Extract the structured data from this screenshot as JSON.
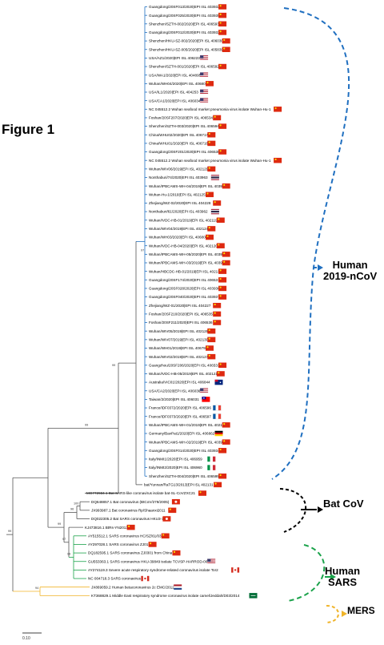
{
  "figure_title": "Figure 1",
  "scale_label": "0.10",
  "groups": {
    "human_2019": {
      "line1": "Human",
      "line2": "2019-nCoV",
      "color": "#1f6fc0"
    },
    "bat_cov": {
      "label": "Bat CoV",
      "color": "#000000"
    },
    "human_sars": {
      "line1": "Human",
      "line2": "SARS",
      "color": "#1aa24a"
    },
    "mers": {
      "label": "MERS",
      "color": "#f0b429"
    }
  },
  "bootstrap_labels": [
    "97",
    "99",
    "99",
    "100",
    "96",
    "97",
    "99",
    "99",
    "99",
    "94"
  ],
  "taxa": [
    {
      "name": "Guangdong/20SF013/2020|EPI ISL 403932",
      "flag": "cn"
    },
    {
      "name": "Guangdong/20SF025/2020|EPI ISL 403935",
      "flag": "cn"
    },
    {
      "name": "Shenzhen/SZTH-002/2020|EPI ISL 406593",
      "flag": "cn"
    },
    {
      "name": "Guangdong/20SF012/2020|EPI ISL 403932",
      "flag": "cn"
    },
    {
      "name": "Shenzhen/HKU-SZ-002/2020|EPI ISL 406030",
      "flag": "cn"
    },
    {
      "name": "Shenzhen/HKU-SZ-005/2020|EPI ISL 405839",
      "flag": "cn"
    },
    {
      "name": "USA/AZ1/2020|EPI ISL 406223",
      "flag": "us"
    },
    {
      "name": "Shenzhen/SZTH-001/2020|EPI ISL 406592",
      "flag": "cn"
    },
    {
      "name": "USA/WA1/2020|EPI ISL 404895",
      "flag": "us"
    },
    {
      "name": "Wuhan/WH04/2020|EPI ISL 406801",
      "flag": "cn"
    },
    {
      "name": "USA/IL1/2020|EPI ISL 404253",
      "flag": "us"
    },
    {
      "name": "USA/CA1/2020|EPI ISL 406034",
      "flag": "us"
    },
    {
      "name": "NC 045512.2 Wuhan seafood market pneumonia virus isolate Wuhan-Hu-1",
      "flag": "cn"
    },
    {
      "name": "Foshan/20SF207/2020|EPI ISL 406534",
      "flag": "cn"
    },
    {
      "name": "Shenzhen/SZTH-003/2020|EPI ISL 406594",
      "flag": "cn"
    },
    {
      "name": "China/WHU02/2020|EPI ISL 406717",
      "flag": "cn"
    },
    {
      "name": "China/WHU01/2020|EPI ISL 406716",
      "flag": "cn"
    },
    {
      "name": "Guangdong/20SF201/2020|EPI ISL 406538",
      "flag": "cn"
    },
    {
      "name": "NC 045512.2 Wuhan seafood market pneumonia virus isolate Wuhan-Hu-1",
      "flag": "cn"
    },
    {
      "name": "Wuhan/WIV06/2019|EPI ISL 402129",
      "flag": "cn"
    },
    {
      "name": "Nonthaburi/74/2020|EPI ISL 403963",
      "flag": "th"
    },
    {
      "name": "Wuhan/IPBCAMS-WH-04/2019|EPI ISL 403929",
      "flag": "cn"
    },
    {
      "name": "Wuhan-Hu-1/2019|EPI ISL 402125",
      "flag": "cn"
    },
    {
      "name": "Zhejiang/WZ-02/2020|EPI ISL 404228",
      "flag": "cn"
    },
    {
      "name": "Nonthaburi/61/2020|EPI ISL 403962",
      "flag": "th"
    },
    {
      "name": "Wuhan/IVDC-HB-01/2019|EPI ISL 402119",
      "flag": "cn"
    },
    {
      "name": "Wuhan/WIV04/2019|EPI ISL 402124",
      "flag": "cn"
    },
    {
      "name": "Wuhan/WH03/2020|EPI ISL 406800",
      "flag": "cn"
    },
    {
      "name": "Wuhan/IVDC-HB-04/2020|EPI ISL 402120",
      "flag": "cn"
    },
    {
      "name": "Wuhan/IPBCAMS-WH-05/2020|EPI ISL 403928",
      "flag": "cn"
    },
    {
      "name": "Wuhan/IPBCAMS-WH-03/2019|EPI ISL 403930",
      "flag": "cn"
    },
    {
      "name": "Wuhan/HBCDC-HB-01/2019|EPI ISL 402132",
      "flag": "cn"
    },
    {
      "name": "Guangdong/20SF174/2020|EPI ISL 406531",
      "flag": "cn"
    },
    {
      "name": "Guangdong/20SF028/2020|EPI ISL 403936",
      "flag": "cn"
    },
    {
      "name": "Guangdong/20SF040/2020|EPI ISL 403937",
      "flag": "cn"
    },
    {
      "name": "Zhejiang/WZ-01/2020|EPI ISL 404227",
      "flag": "cn"
    },
    {
      "name": "Foshan/20SF210/2020|EPI ISL 406535",
      "flag": "cn"
    },
    {
      "name": "Foshan/20SF211/2020|EPI ISL 406536",
      "flag": "cn"
    },
    {
      "name": "Wuhan/WIV05/2019|EPI ISL 402128",
      "flag": "cn"
    },
    {
      "name": "Wuhan/WIV07/2019|EPI ISL 402130",
      "flag": "cn"
    },
    {
      "name": "Wuhan/WH01/2019|EPI ISL 406798",
      "flag": "cn"
    },
    {
      "name": "Wuhan/WIV02/2019|EPI ISL 402127",
      "flag": "cn"
    },
    {
      "name": "Guangzhou/20SF206/2020|EPI ISL 406533",
      "flag": "cn"
    },
    {
      "name": "Wuhan/IVDC-HB-05/2019|EPI ISL 402121",
      "flag": "cn"
    },
    {
      "name": "Australia/VIC01/2020|EPI ISL 406844",
      "flag": "au"
    },
    {
      "name": "USA/CA2/2020|EPI ISL 406036",
      "flag": "us"
    },
    {
      "name": "Taiwan/2/2020|EPI ISL 406031",
      "flag": "tw"
    },
    {
      "name": "France/IDF0372/2020|EPI ISL 406596",
      "flag": "fr"
    },
    {
      "name": "France/IDF0373/2020|EPI ISL 406597",
      "flag": "fr"
    },
    {
      "name": "Wuhan/IPBCAMS-WH-01/2019|EPI ISL 402123",
      "flag": "cn"
    },
    {
      "name": "Germany/BavPat1/2020|EPI ISL 406862",
      "flag": "de"
    },
    {
      "name": "Wuhan/IPBCAMS-WH-02/2019|EPI ISL 403931",
      "flag": "cn"
    },
    {
      "name": "Guangdong/20SF014/2020|EPI ISL 403934",
      "flag": "cn"
    },
    {
      "name": "Italy/INMI1/2020|EPI ISL 406959",
      "flag": "it"
    },
    {
      "name": "Italy/INMI2/2020|EPI ISL 406960",
      "flag": "it"
    },
    {
      "name": "Shenzhen/SZTH-004/2020|EPI ISL 406595",
      "flag": "cn"
    },
    {
      "name": "bat/Yunnan/RaTG13/2013|EPI ISL 402131",
      "flag": "cn"
    },
    {
      "name": "MG772934.1 Bat SARS-like coronavirus isolate bat-SL-CoVZXC21",
      "flag": "cn"
    },
    {
      "name": "DQ648857.1 Bat coronavirus (BtCoV/279/2005)",
      "flag": "hk"
    },
    {
      "name": "JX993987.1 Bat coronavirus Rp/Shaanxi2011",
      "flag": "cn"
    },
    {
      "name": "DQ022305.2 Bat SARS coronavirus HKU3-1",
      "flag": "hk"
    },
    {
      "name": "KJ473816.1 BtRs-YN2013",
      "flag": "cn"
    },
    {
      "name": "AY515512.1 SARS coronavirus HC/SZ/61/03",
      "flag": "cn"
    },
    {
      "name": "AY297028.1 SARS coronavirus ZJ01",
      "flag": "cn"
    },
    {
      "name": "DQ182595.1 SARS coronavirus ZJ0301 from China",
      "flag": "cn"
    },
    {
      "name": "GU553363.1 SARS coronavirus HKU-39849 isolate TCVSP-HARROD-00001",
      "flag": "us"
    },
    {
      "name": "AY274119.3 Severe acute respiratory syndrome-related coronavirus isolate Tor2",
      "flag": "ca"
    },
    {
      "name": "NC 004718.3 SARS coronavirus",
      "flag": "ca"
    },
    {
      "name": "JX869059.2 Human betacoronavirus 2c EMC/2012",
      "flag": "nl"
    },
    {
      "name": "KT368829.1 Middle East respiratory syndrome coronavirus isolate camel/Jeddah/D03/2014",
      "flag": "sa"
    }
  ]
}
